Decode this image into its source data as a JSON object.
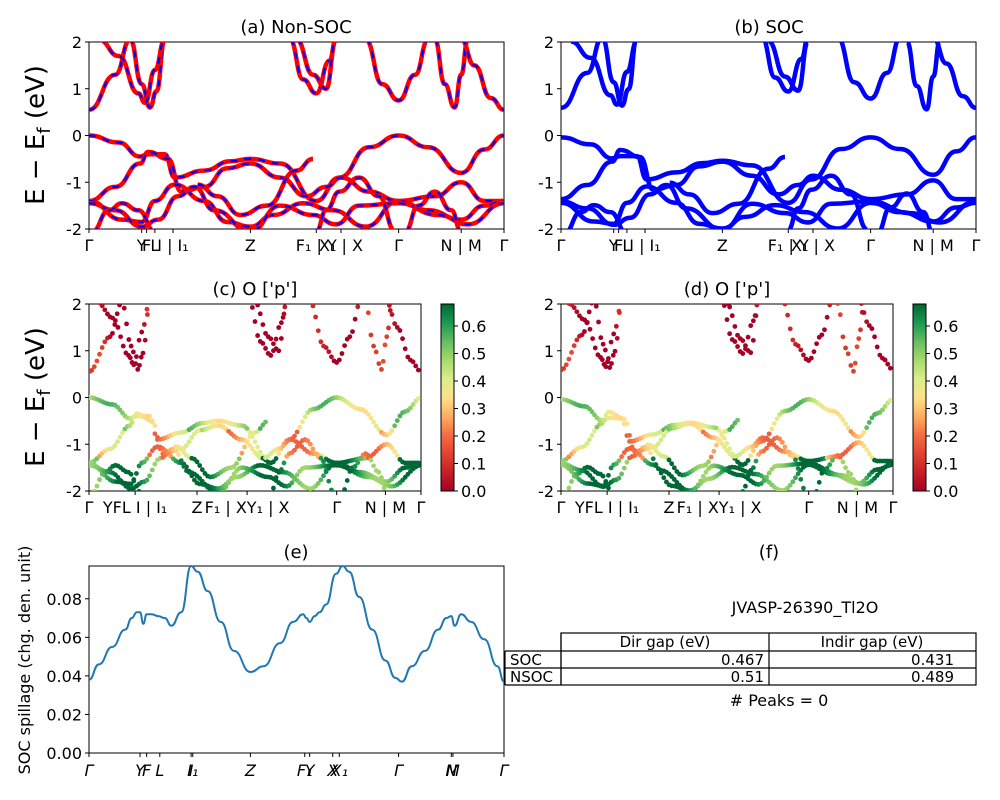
{
  "figure": {
    "info_title": "JVASP-26390_Tl2O",
    "peaks_text": "# Peaks = 0",
    "table": {
      "headers": [
        "",
        "Dir gap (eV)",
        "Indir gap (eV)"
      ],
      "rows": [
        {
          "label": "SOC",
          "dir": "0.467",
          "indir": "0.431"
        },
        {
          "label": "NSOC",
          "dir": "0.51",
          "indir": "0.489"
        }
      ]
    }
  },
  "colors": {
    "soc_bands": "#0000ff",
    "nonsoc_bands": "#ff0000",
    "spillage_line": "#1f77b4"
  },
  "chart_data": [
    {
      "id": "a",
      "type": "line",
      "title": "(a) Non-SOC",
      "ylabel": "E − E_f (eV)",
      "ylim": [
        -2,
        2
      ],
      "yticks": [
        -2,
        -1,
        0,
        1,
        2
      ],
      "path_x_range": [
        0,
        12.6
      ],
      "xticks": [
        {
          "x": 0,
          "label": "Γ"
        },
        {
          "x": 1.6,
          "label": "Y"
        },
        {
          "x": 1.75,
          "label": "F"
        },
        {
          "x": 2.0,
          "label": "L"
        },
        {
          "x": 2.55,
          "label": "I | I₁"
        },
        {
          "x": 4.9,
          "label": "Z"
        },
        {
          "x": 6.9,
          "label": "F₁ | Y"
        },
        {
          "x": 7.65,
          "label": "X₁ | X"
        },
        {
          "x": 9.4,
          "label": "Γ"
        },
        {
          "x": 11.3,
          "label": "N | M"
        },
        {
          "x": 12.6,
          "label": "Γ"
        }
      ],
      "series": [
        {
          "values_x": [
            0,
            0.8,
            1.3,
            1.6,
            1.9,
            2.1
          ],
          "values_y": [
            0.55,
            1.3,
            2,
            1.1,
            0.6,
            1.2
          ]
        },
        {
          "values_x": [
            0,
            1.6,
            2.2,
            2.6,
            3.5,
            4.9,
            5.8,
            6.9,
            7.6,
            8.5,
            9.4
          ],
          "values_y": [
            0,
            -0.4,
            -0.4,
            -0.9,
            -0.8,
            -0.5,
            -0.6,
            -1.4,
            -0.9,
            -0.25,
            0
          ]
        },
        {
          "values_x": [
            0,
            1.0,
            2.0,
            3.2,
            4.9,
            6.3,
            7.6,
            9.4
          ],
          "values_y": [
            -1.4,
            -1.8,
            -1.2,
            -1.4,
            -1.9,
            -1.5,
            -1.6,
            -1.4
          ]
        }
      ]
    },
    {
      "id": "b",
      "type": "line",
      "title": "(b) SOC",
      "ylim": [
        -2,
        2
      ],
      "yticks": [
        -2,
        -1,
        0,
        1,
        2
      ],
      "path_x_range": [
        0,
        12.6
      ],
      "series": [
        {
          "values_x": [
            0,
            0.8,
            1.3,
            1.6,
            1.9,
            2.1
          ],
          "values_y": [
            0.5,
            1.3,
            2,
            1.0,
            0.55,
            1.2
          ]
        },
        {
          "values_x": [
            0,
            1.6,
            2.2,
            2.6,
            3.5,
            4.9,
            5.8,
            6.9,
            7.6,
            8.5,
            9.4
          ],
          "values_y": [
            0,
            -0.45,
            -0.4,
            -0.95,
            -0.8,
            -0.55,
            -0.6,
            -1.45,
            -0.95,
            -0.3,
            0
          ]
        },
        {
          "values_x": [
            0,
            1.0,
            2.0,
            3.2,
            4.9,
            6.3,
            7.6,
            9.4
          ],
          "values_y": [
            -1.45,
            -1.85,
            -1.25,
            -1.45,
            -1.9,
            -1.5,
            -1.6,
            -1.45
          ]
        }
      ]
    },
    {
      "id": "c",
      "type": "scatter",
      "title": "(c)  O ['p']",
      "ylabel": "E − E_f (eV)",
      "ylim": [
        -2,
        2
      ],
      "yticks": [
        -2,
        -1,
        0,
        1,
        2
      ],
      "colorbar": {
        "range": [
          0.0,
          0.68
        ],
        "ticks": [
          "0.0",
          "0.1",
          "0.2",
          "0.3",
          "0.4",
          "0.5",
          "0.6"
        ]
      },
      "xticks": [
        "Γ",
        "YFL I | I₁",
        "Z",
        "F₁ | XY₁ | X",
        "Γ",
        "N | M",
        "Γ"
      ]
    },
    {
      "id": "d",
      "type": "scatter",
      "title": "(d) O ['p']",
      "ylim": [
        -2,
        2
      ],
      "yticks": [
        -2,
        -1,
        0,
        1,
        2
      ],
      "colorbar": {
        "range": [
          0.0,
          0.68
        ],
        "ticks": [
          "0.0",
          "0.1",
          "0.2",
          "0.3",
          "0.4",
          "0.5",
          "0.6"
        ]
      },
      "xticks": [
        "Γ",
        "YFL I | I₁",
        "Z",
        "F₁ | XY₁ | X",
        "Γ",
        "N | M",
        "Γ"
      ]
    },
    {
      "id": "e",
      "type": "line",
      "title": "(e)",
      "ylabel": "SOC spillage (chg. den. unit)",
      "ylim": [
        0,
        0.097
      ],
      "yticks": [
        "0.00",
        "0.02",
        "0.04",
        "0.06",
        "0.08"
      ],
      "xticks": [
        {
          "x": 0,
          "label": "Γ"
        },
        {
          "x": 1.55,
          "label": "Y"
        },
        {
          "x": 1.75,
          "label": "F"
        },
        {
          "x": 2.15,
          "label": "L"
        },
        {
          "x": 3.1,
          "label": "I"
        },
        {
          "x": 3.15,
          "label": "I₁"
        },
        {
          "x": 4.9,
          "label": "Z"
        },
        {
          "x": 6.55,
          "label": "F₁"
        },
        {
          "x": 6.7,
          "label": "Y"
        },
        {
          "x": 7.4,
          "label": "X"
        },
        {
          "x": 7.6,
          "label": "X₁"
        },
        {
          "x": 9.4,
          "label": "Γ"
        },
        {
          "x": 11.0,
          "label": "N"
        },
        {
          "x": 11.05,
          "label": "M"
        },
        {
          "x": 12.6,
          "label": "Γ"
        }
      ],
      "x": [
        0,
        0.3,
        0.7,
        1.1,
        1.3,
        1.45,
        1.55,
        1.65,
        1.75,
        1.9,
        2.1,
        2.3,
        2.5,
        2.8,
        3.1,
        3.3,
        3.6,
        4.0,
        4.4,
        4.9,
        5.3,
        5.8,
        6.2,
        6.5,
        6.6,
        6.7,
        6.85,
        7.0,
        7.2,
        7.5,
        7.7,
        7.9,
        8.2,
        8.6,
        9.0,
        9.3,
        9.5,
        9.8,
        10.2,
        10.6,
        10.85,
        11.0,
        11.1,
        11.3,
        11.6,
        12.0,
        12.4,
        12.6
      ],
      "y": [
        0.038,
        0.046,
        0.055,
        0.064,
        0.07,
        0.073,
        0.073,
        0.067,
        0.072,
        0.072,
        0.071,
        0.07,
        0.066,
        0.073,
        0.097,
        0.094,
        0.084,
        0.068,
        0.053,
        0.042,
        0.045,
        0.057,
        0.068,
        0.072,
        0.07,
        0.068,
        0.071,
        0.073,
        0.077,
        0.093,
        0.097,
        0.094,
        0.081,
        0.064,
        0.048,
        0.039,
        0.037,
        0.045,
        0.053,
        0.064,
        0.07,
        0.071,
        0.066,
        0.072,
        0.068,
        0.059,
        0.045,
        0.037
      ]
    }
  ]
}
